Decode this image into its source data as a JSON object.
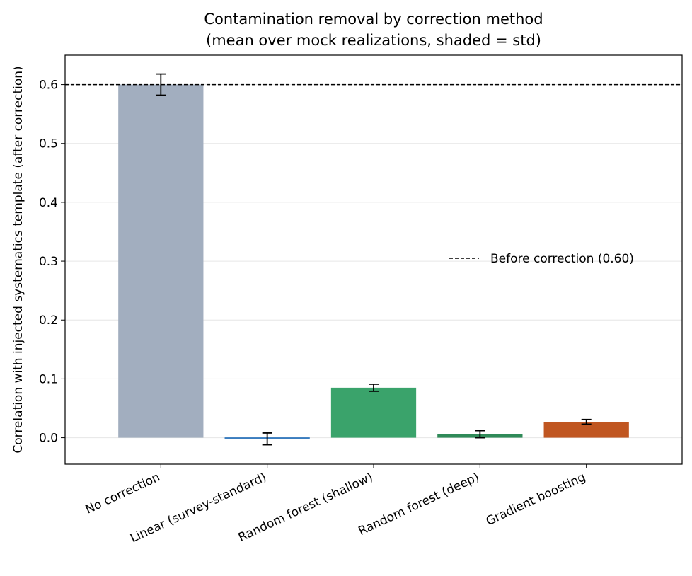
{
  "chart_data": {
    "type": "bar",
    "title_line1": "Contamination removal by correction method",
    "title_line2": "(mean over mock realizations, shaded = std)",
    "xlabel": "",
    "ylabel": "Correlation with injected systematics template (after correction)",
    "categories": [
      "No correction",
      "Linear (survey-standard)",
      "Random forest (shallow)",
      "Random forest (deep)",
      "Gradient boosting"
    ],
    "values": [
      0.6,
      -0.002,
      0.085,
      0.006,
      0.027
    ],
    "errors": [
      0.018,
      0.01,
      0.006,
      0.006,
      0.004
    ],
    "colors": [
      "#a2aebf",
      "#3a7dbf",
      "#3aa36b",
      "#2f8a58",
      "#c05621"
    ],
    "ylim": [
      -0.045,
      0.65
    ],
    "yticks": [
      0.0,
      0.1,
      0.2,
      0.3,
      0.4,
      0.5,
      0.6
    ],
    "reference_line": {
      "value": 0.6,
      "label": "Before correction (0.60)"
    },
    "grid": "y",
    "legend_placement": "center-right"
  }
}
